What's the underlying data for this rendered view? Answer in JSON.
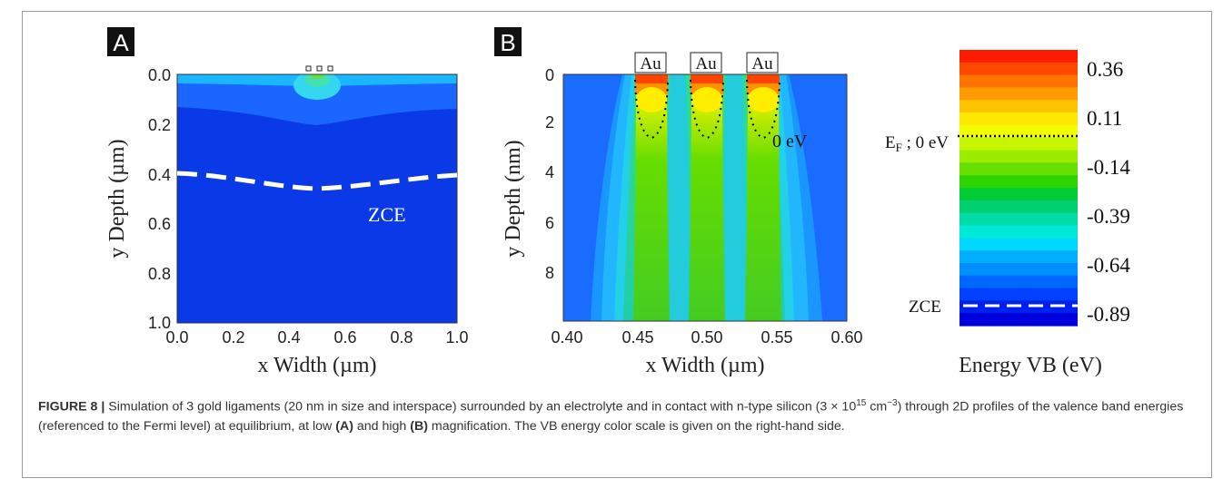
{
  "panel_a": {
    "letter": "A",
    "xlabel": "x  Width  (µm)",
    "ylabel": "y Depth  (µm)",
    "xticks": [
      "0.0",
      "0.2",
      "0.4",
      "0.6",
      "0.8",
      "1.0"
    ],
    "yticks": [
      "0.0",
      "0.2",
      "0.4",
      "0.6",
      "0.8",
      "1.0"
    ],
    "zce_label": "ZCE"
  },
  "panel_b": {
    "letter": "B",
    "xlabel": "x  Width  (µm)",
    "ylabel": "y Depth  (nm)",
    "xticks": [
      "0.40",
      "0.45",
      "0.50",
      "0.55",
      "0.60"
    ],
    "yticks": [
      "0",
      "2",
      "4",
      "6",
      "8"
    ],
    "au_labels": [
      "Au",
      "Au",
      "Au"
    ],
    "contour_label": "0 eV"
  },
  "colorbar": {
    "ticks": [
      "0.36",
      "0.11",
      "-0.14",
      "-0.39",
      "-0.64",
      "-0.89"
    ],
    "ef_label_main": "E",
    "ef_label_sub": "F",
    "ef_label_rest": " ; 0 eV",
    "zce_label": "ZCE",
    "title": "Energy VB (eV)",
    "colors": [
      "#ff1a00",
      "#ff4800",
      "#ff7400",
      "#ff9a00",
      "#ffc400",
      "#ffe800",
      "#f0ff00",
      "#c8f500",
      "#9cec00",
      "#66e000",
      "#2ed400",
      "#00cc33",
      "#00d070",
      "#00dca8",
      "#00e8d8",
      "#00d8ff",
      "#00b0ff",
      "#0090ff",
      "#0068ff",
      "#0040ff",
      "#0020ee",
      "#0000dd"
    ]
  },
  "caption": {
    "label": "FIGURE 8 |",
    "text_1": " Simulation of 3 gold ligaments (20 nm in size and interspace) surrounded by an electrolyte and in contact with n-type silicon (3 × 10",
    "sup": "15",
    "text_2": " cm",
    "sup2": "−3",
    "text_3": ") through 2D profiles of the valence band energies (referenced to the Fermi level) at equilibrium, at low ",
    "ref_a": "(A)",
    "text_4": " and high ",
    "ref_b": "(B)",
    "text_5": " magnification. The VB energy color scale is given on the right-hand side."
  }
}
